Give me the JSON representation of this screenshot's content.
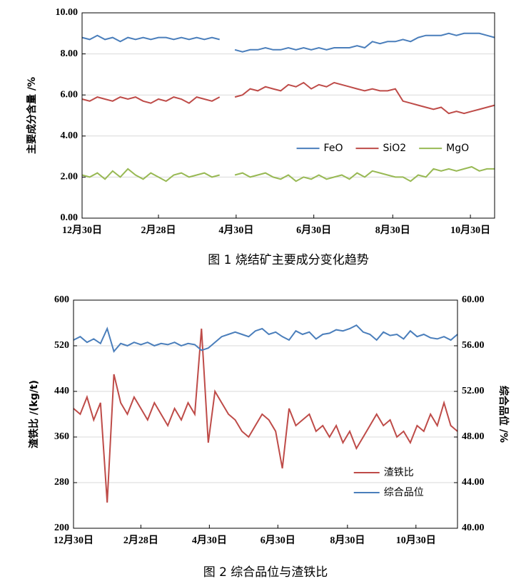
{
  "chart_data": [
    {
      "type": "line",
      "title": "图 1  烧结矿主要成分变化趋势",
      "ylabel": "主要成分含量 /%",
      "x": [
        0,
        6,
        12,
        18,
        24,
        30,
        36,
        42,
        48,
        54,
        60,
        66,
        72,
        78,
        84,
        90,
        96,
        102,
        108,
        114,
        120,
        126,
        132,
        138,
        144,
        150,
        156,
        162,
        168,
        174,
        180,
        186,
        192,
        198,
        204,
        210,
        216,
        222,
        228,
        234,
        240,
        246,
        252,
        258,
        264,
        270,
        276,
        282,
        288,
        294,
        300,
        306,
        312,
        318,
        324
      ],
      "xlim": [
        0,
        324
      ],
      "xticks": [
        {
          "value": 0,
          "label": "12月30日"
        },
        {
          "value": 60,
          "label": "2月28日"
        },
        {
          "value": 121,
          "label": "4月30日"
        },
        {
          "value": 182,
          "label": "6月30日"
        },
        {
          "value": 244,
          "label": "8月30日"
        },
        {
          "value": 305,
          "label": "10月30日"
        }
      ],
      "ylim": [
        0,
        10
      ],
      "yticks": [
        {
          "value": 0,
          "label": "0.00"
        },
        {
          "value": 2,
          "label": "2.00"
        },
        {
          "value": 4,
          "label": "4.00"
        },
        {
          "value": 6,
          "label": "6.00"
        },
        {
          "value": 8,
          "label": "8.00"
        },
        {
          "value": 10,
          "label": "10.00"
        }
      ],
      "grid": true,
      "legend": "center right",
      "legend_layout": "horizontal",
      "series": [
        {
          "name": "FeO",
          "color": "#4a7ebb",
          "values": [
            8.8,
            8.7,
            8.9,
            8.7,
            8.8,
            8.6,
            8.8,
            8.7,
            8.8,
            8.7,
            8.8,
            8.8,
            8.7,
            8.8,
            8.7,
            8.8,
            8.7,
            8.8,
            8.7,
            null,
            8.2,
            8.1,
            8.2,
            8.2,
            8.3,
            8.2,
            8.2,
            8.3,
            8.2,
            8.3,
            8.2,
            8.3,
            8.2,
            8.3,
            8.3,
            8.3,
            8.4,
            8.3,
            8.6,
            8.5,
            8.6,
            8.6,
            8.7,
            8.6,
            8.8,
            8.9,
            8.9,
            8.9,
            9.0,
            8.9,
            9.0,
            9.0,
            9.0,
            8.9,
            8.8
          ]
        },
        {
          "name": "SiO2",
          "color": "#be4b48",
          "values": [
            5.8,
            5.7,
            5.9,
            5.8,
            5.7,
            5.9,
            5.8,
            5.9,
            5.7,
            5.6,
            5.8,
            5.7,
            5.9,
            5.8,
            5.6,
            5.9,
            5.8,
            5.7,
            5.9,
            null,
            5.9,
            6.0,
            6.3,
            6.2,
            6.4,
            6.3,
            6.2,
            6.5,
            6.4,
            6.6,
            6.3,
            6.5,
            6.4,
            6.6,
            6.5,
            6.4,
            6.3,
            6.2,
            6.3,
            6.2,
            6.2,
            6.3,
            5.7,
            5.6,
            5.5,
            5.4,
            5.3,
            5.4,
            5.1,
            5.2,
            5.1,
            5.2,
            5.3,
            5.4,
            5.5
          ]
        },
        {
          "name": "MgO",
          "color": "#98b954",
          "values": [
            2.1,
            2.0,
            2.2,
            1.9,
            2.3,
            2.0,
            2.4,
            2.1,
            1.9,
            2.2,
            2.0,
            1.8,
            2.1,
            2.2,
            2.0,
            2.1,
            2.2,
            2.0,
            2.1,
            null,
            2.1,
            2.2,
            2.0,
            2.1,
            2.2,
            2.0,
            1.9,
            2.1,
            1.8,
            2.0,
            1.9,
            2.1,
            1.9,
            2.0,
            2.1,
            1.9,
            2.2,
            2.0,
            2.3,
            2.2,
            2.1,
            2.0,
            2.0,
            1.8,
            2.1,
            2.0,
            2.4,
            2.3,
            2.4,
            2.3,
            2.4,
            2.5,
            2.3,
            2.4,
            2.4
          ]
        }
      ]
    },
    {
      "type": "line",
      "title": "图 2  综合品位与渣铁比",
      "ylabel": "渣铁比 /(kg/t)",
      "y2label": "综合品位 /%",
      "x": [
        0,
        6,
        12,
        18,
        24,
        30,
        36,
        42,
        48,
        54,
        60,
        66,
        72,
        78,
        84,
        90,
        96,
        102,
        108,
        114,
        120,
        126,
        132,
        138,
        144,
        150,
        156,
        162,
        168,
        174,
        180,
        186,
        192,
        198,
        204,
        210,
        216,
        222,
        228,
        234,
        240,
        246,
        252,
        258,
        264,
        270,
        276,
        282,
        288,
        294,
        300,
        306,
        312,
        318,
        324,
        330,
        336,
        342
      ],
      "xlim": [
        0,
        342
      ],
      "xticks": [
        {
          "value": 0,
          "label": "12月30日"
        },
        {
          "value": 60,
          "label": "2月28日"
        },
        {
          "value": 121,
          "label": "4月30日"
        },
        {
          "value": 182,
          "label": "6月30日"
        },
        {
          "value": 244,
          "label": "8月30日"
        },
        {
          "value": 305,
          "label": "10月30日"
        }
      ],
      "ylim": [
        200,
        600
      ],
      "yticks": [
        200,
        280,
        360,
        440,
        520,
        600
      ],
      "y2lim": [
        40,
        60
      ],
      "y2ticks": [
        {
          "value": 40,
          "label": "40.00"
        },
        {
          "value": 44,
          "label": "44.00"
        },
        {
          "value": 48,
          "label": "48.00"
        },
        {
          "value": 52,
          "label": "52.00"
        },
        {
          "value": 56,
          "label": "56.00"
        },
        {
          "value": 60,
          "label": "60.00"
        }
      ],
      "grid": true,
      "legend": "lower right",
      "legend_layout": "vertical",
      "series": [
        {
          "name": "渣铁比",
          "color": "#be4b48",
          "values": [
            410,
            400,
            430,
            390,
            420,
            245,
            470,
            420,
            400,
            430,
            410,
            390,
            420,
            400,
            380,
            410,
            390,
            420,
            400,
            550,
            350,
            440,
            420,
            400,
            390,
            370,
            360,
            380,
            400,
            390,
            370,
            305,
            410,
            380,
            390,
            400,
            370,
            380,
            360,
            380,
            350,
            370,
            340,
            360,
            380,
            400,
            380,
            390,
            360,
            370,
            350,
            380,
            370,
            400,
            380,
            420,
            380,
            370
          ]
        },
        {
          "name": "综合品位",
          "color": "#4a7ebb",
          "axis": "y2",
          "values": [
            56.5,
            56.8,
            56.3,
            56.6,
            56.2,
            57.5,
            55.5,
            56.2,
            56.0,
            56.3,
            56.1,
            56.3,
            56.0,
            56.2,
            56.1,
            56.3,
            56.0,
            56.2,
            56.1,
            55.6,
            55.8,
            56.3,
            56.8,
            57.0,
            57.2,
            57.0,
            56.8,
            57.3,
            57.5,
            57.0,
            57.2,
            56.8,
            56.5,
            57.3,
            57.0,
            57.2,
            56.6,
            57.0,
            57.1,
            57.4,
            57.3,
            57.5,
            57.8,
            57.2,
            57.0,
            56.5,
            57.2,
            56.9,
            57.0,
            56.6,
            57.3,
            56.8,
            57.0,
            56.7,
            56.6,
            56.8,
            56.5,
            57.0
          ]
        }
      ]
    }
  ]
}
